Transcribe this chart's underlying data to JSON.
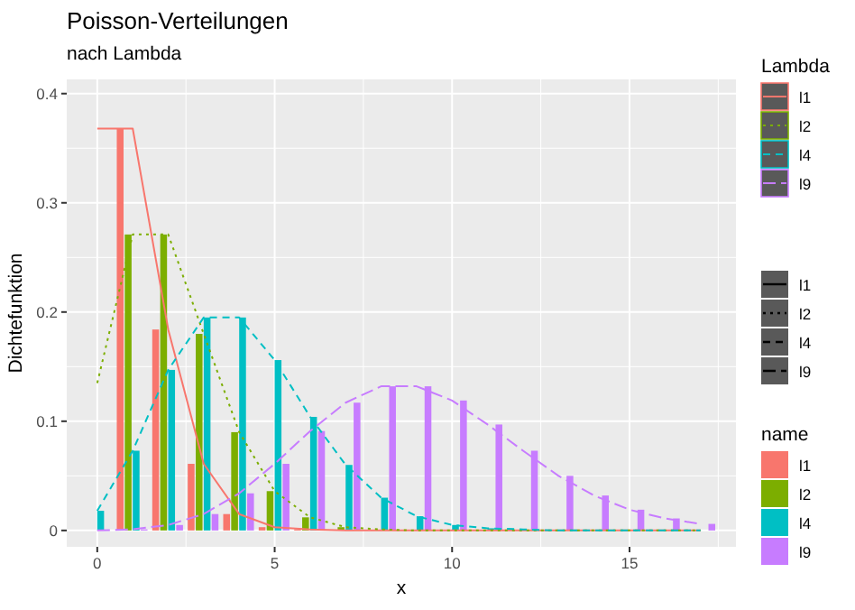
{
  "chart_data": {
    "type": "bar",
    "title": "Poisson-Verteilungen",
    "subtitle": "nach Lambda",
    "xlabel": "x",
    "ylabel": "Dichtefunktion",
    "legend_title": "name",
    "legend": "right",
    "grid": true,
    "xlim": [
      -0.86,
      18
    ],
    "xticks": [
      0,
      5,
      10,
      15
    ],
    "ylim": [
      -0.015,
      0.413
    ],
    "yticks": [
      0,
      0.1,
      0.2,
      0.3,
      0.4
    ],
    "series": [
      {
        "name": "l1",
        "color": "#f8766d",
        "x": [
          1,
          2,
          3,
          4,
          5,
          6,
          7,
          8,
          9,
          10,
          11,
          12,
          13,
          14,
          15,
          16,
          17
        ],
        "values": [
          0.368,
          0.184,
          0.061,
          0.015,
          0.003,
          0.001,
          0,
          0,
          0,
          0,
          0,
          0,
          0,
          0,
          0,
          0,
          0
        ]
      },
      {
        "name": "l2",
        "color": "#7cae00",
        "x": [
          1,
          2,
          3,
          4,
          5,
          6,
          7,
          9,
          10,
          11,
          12,
          13,
          14,
          15,
          16,
          17
        ],
        "values": [
          0.271,
          0.271,
          0.18,
          0.09,
          0.036,
          0.012,
          0.003,
          0,
          0,
          0,
          0,
          0,
          0,
          0,
          0,
          0
        ]
      },
      {
        "name": "l4",
        "color": "#00bfc4",
        "x": [
          0,
          1,
          2,
          3,
          4,
          5,
          6,
          7,
          8,
          9,
          10,
          11,
          13,
          14,
          15,
          16,
          17
        ],
        "values": [
          0.018,
          0.073,
          0.147,
          0.195,
          0.195,
          0.156,
          0.104,
          0.06,
          0.03,
          0.013,
          0.005,
          0.002,
          0,
          0,
          0,
          0,
          0
        ]
      },
      {
        "name": "l9",
        "color": "#c77cff",
        "x": [
          0,
          1,
          2,
          3,
          4,
          5,
          6,
          7,
          8,
          9,
          10,
          11,
          12,
          13,
          14,
          15,
          16,
          17
        ],
        "values": [
          0,
          0.001,
          0.005,
          0.015,
          0.034,
          0.061,
          0.091,
          0.117,
          0.132,
          0.132,
          0.119,
          0.097,
          0.073,
          0.05,
          0.032,
          0.019,
          0.011,
          0.006
        ]
      },
      {
        "name": "l1",
        "type": "line",
        "line_style": "solid",
        "color": "#f8766d",
        "x": [
          0,
          1,
          2,
          3,
          4,
          5,
          6,
          7,
          8,
          9,
          10,
          11,
          12,
          13,
          14,
          15,
          16,
          17
        ],
        "values": [
          0.368,
          0.368,
          0.184,
          0.061,
          0.015,
          0.003,
          0.001,
          0,
          0,
          0,
          0,
          0,
          0,
          0,
          0,
          0,
          0,
          0
        ]
      },
      {
        "name": "l2",
        "type": "line",
        "line_style": "dotted",
        "color": "#7cae00",
        "x": [
          0,
          1,
          2,
          3,
          4,
          5,
          6,
          7,
          8,
          9,
          10,
          11,
          12,
          13,
          14,
          15,
          16,
          17
        ],
        "values": [
          0.135,
          0.271,
          0.271,
          0.18,
          0.09,
          0.036,
          0.012,
          0.003,
          0.001,
          0,
          0,
          0,
          0,
          0,
          0,
          0,
          0,
          0
        ]
      },
      {
        "name": "l4",
        "type": "line",
        "line_style": "dashed",
        "color": "#00bfc4",
        "x": [
          0,
          1,
          2,
          3,
          4,
          5,
          6,
          7,
          8,
          9,
          10,
          11,
          12,
          13,
          14,
          15,
          16,
          17
        ],
        "values": [
          0.018,
          0.073,
          0.147,
          0.195,
          0.195,
          0.156,
          0.104,
          0.06,
          0.03,
          0.013,
          0.005,
          0.002,
          0.001,
          0,
          0,
          0,
          0,
          0
        ]
      },
      {
        "name": "l9",
        "type": "line",
        "line_style": "longdash",
        "color": "#c77cff",
        "x": [
          0,
          1,
          2,
          3,
          4,
          5,
          6,
          7,
          8,
          9,
          10,
          11,
          12,
          13,
          14,
          15,
          16,
          17
        ],
        "values": [
          0,
          0.001,
          0.005,
          0.015,
          0.034,
          0.061,
          0.091,
          0.117,
          0.132,
          0.132,
          0.119,
          0.097,
          0.073,
          0.05,
          0.032,
          0.019,
          0.011,
          0.006
        ]
      }
    ],
    "annotations": [
      "Lambda"
    ]
  }
}
